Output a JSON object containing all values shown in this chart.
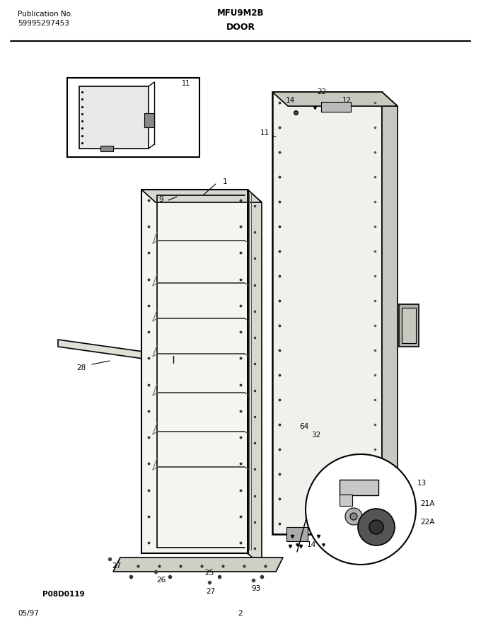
{
  "title_left_line1": "Publication No.",
  "title_left_line2": "59995297453",
  "title_center": "MFU9M2B",
  "subtitle_center": "DOOR",
  "footer_left": "05/97",
  "footer_center": "2",
  "part_code": "P08D0119",
  "bg_color": "#ffffff",
  "line_color": "#000000",
  "fig_width": 6.8,
  "fig_height": 8.82,
  "dpi": 100
}
